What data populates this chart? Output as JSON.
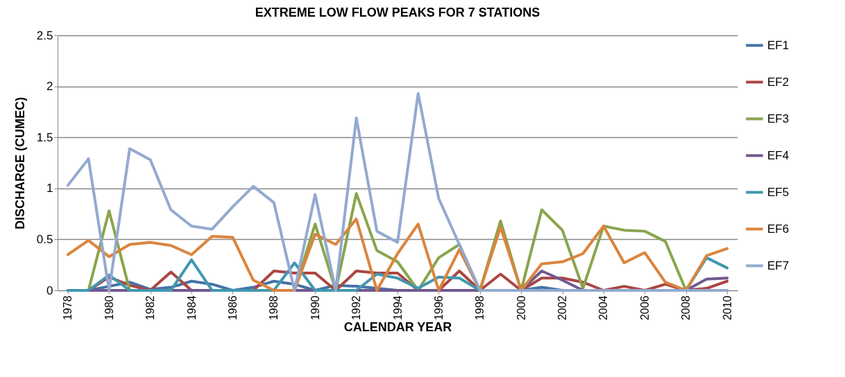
{
  "chart_data": {
    "type": "line",
    "title": "EXTREME LOW FLOW PEAKS FOR 7 STATIONS",
    "xlabel": "CALENDAR YEAR",
    "ylabel": "DISCHARGE (CUMEC)",
    "x": [
      1978,
      1979,
      1980,
      1981,
      1982,
      1983,
      1984,
      1985,
      1986,
      1987,
      1988,
      1989,
      1990,
      1991,
      1992,
      1993,
      1994,
      1995,
      1996,
      1997,
      1998,
      1999,
      2000,
      2001,
      2002,
      2003,
      2004,
      2005,
      2006,
      2007,
      2008,
      2009,
      2010
    ],
    "xlim": [
      1977.5,
      2010.5
    ],
    "xticks": [
      1978,
      1980,
      1982,
      1984,
      1986,
      1988,
      1990,
      1992,
      1994,
      1996,
      1998,
      2000,
      2002,
      2004,
      2006,
      2008,
      2010
    ],
    "ylim": [
      0,
      2.5
    ],
    "yticks": [
      0,
      0.5,
      1,
      1.5,
      2,
      2.5
    ],
    "grid": "y",
    "legend": "right",
    "line_style": "solid",
    "series": [
      {
        "name": "EF1",
        "color": "#4572a7",
        "values": [
          0,
          0,
          0.04,
          0.08,
          0.01,
          0.03,
          0.09,
          0.06,
          0,
          0.03,
          0.09,
          0.06,
          0,
          0.05,
          0.04,
          0.02,
          0,
          0,
          0,
          0,
          0,
          0,
          0,
          0.03,
          0,
          0,
          0,
          0,
          0,
          0,
          0,
          0,
          0
        ]
      },
      {
        "name": "EF2",
        "color": "#aa4643",
        "values": [
          0,
          0,
          0.13,
          0.05,
          0,
          0.18,
          0,
          0,
          0,
          0,
          0.19,
          0.17,
          0.17,
          0,
          0.19,
          0.17,
          0.17,
          0,
          0,
          0.19,
          0,
          0.16,
          0,
          0.12,
          0.12,
          0.08,
          0,
          0.04,
          0,
          0.06,
          0,
          0.02,
          0.09
        ]
      },
      {
        "name": "EF3",
        "color": "#89a54e",
        "values": [
          0,
          0,
          0.78,
          0,
          0,
          0,
          0,
          0,
          0,
          0,
          0,
          0,
          0.65,
          0,
          0.95,
          0.39,
          0.28,
          0,
          0.32,
          0.45,
          0,
          0.68,
          0,
          0.79,
          0.59,
          0.02,
          0.63,
          0.59,
          0.58,
          0.48,
          0,
          0,
          0
        ]
      },
      {
        "name": "EF4",
        "color": "#71588f",
        "values": [
          0,
          0,
          0,
          0,
          0,
          0,
          0,
          0,
          0,
          0,
          0,
          0,
          0,
          0,
          0,
          0,
          0,
          0,
          0,
          0,
          0,
          0,
          0,
          0.19,
          0.1,
          0,
          0,
          0,
          0,
          0,
          0,
          0.11,
          0.12
        ]
      },
      {
        "name": "EF5",
        "color": "#4198af",
        "values": [
          0,
          0,
          0.15,
          0,
          0,
          0,
          0.3,
          0,
          0,
          0,
          0,
          0.27,
          0,
          0,
          0,
          0.16,
          0.12,
          0.02,
          0.13,
          0.12,
          0,
          0,
          0,
          0,
          0,
          0,
          0,
          0,
          0,
          0,
          0,
          0.32,
          0.22
        ]
      },
      {
        "name": "EF6",
        "color": "#db843d",
        "values": [
          0.35,
          0.49,
          0.33,
          0.45,
          0.47,
          0.44,
          0.35,
          0.53,
          0.52,
          0.1,
          0,
          0,
          0.55,
          0.45,
          0.7,
          0,
          0.36,
          0.65,
          0,
          0.4,
          0,
          0.62,
          0,
          0.26,
          0.28,
          0.36,
          0.63,
          0.27,
          0.37,
          0.08,
          0,
          0.34,
          0.41
        ]
      },
      {
        "name": "EF7",
        "color": "#93a9cf",
        "values": [
          1.03,
          1.29,
          0,
          1.39,
          1.28,
          0.79,
          0.63,
          0.6,
          0.82,
          1.02,
          0.86,
          0,
          0.94,
          0,
          1.69,
          0.58,
          0.47,
          1.93,
          0.9,
          0.45,
          0,
          0,
          0,
          0,
          0,
          0,
          0,
          0,
          0,
          0,
          0,
          0,
          0
        ]
      }
    ]
  }
}
